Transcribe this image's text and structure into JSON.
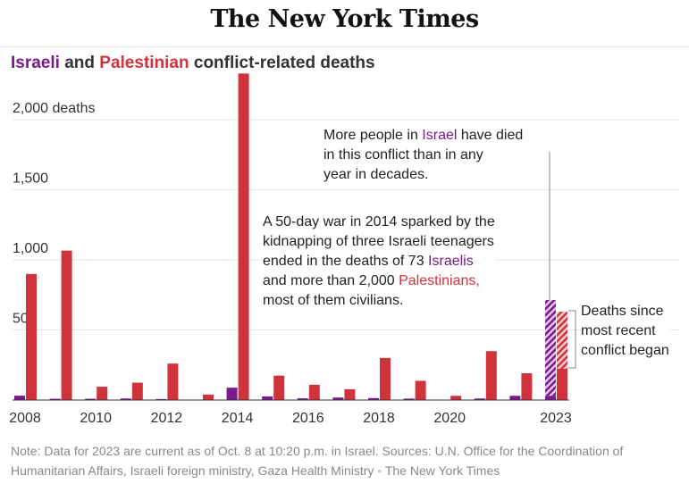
{
  "header": {
    "logo": "The New York Times"
  },
  "title": {
    "part1": "Israeli",
    "part2": " and ",
    "part3": "Palestinian",
    "part4": " conflict-related deaths"
  },
  "chart_data": {
    "type": "bar",
    "categories": [
      "2008",
      "2009",
      "2010",
      "2011",
      "2012",
      "2013",
      "2014",
      "2015",
      "2016",
      "2017",
      "2018",
      "2019",
      "2020",
      "2021",
      "2022",
      "2023"
    ],
    "tick_labels": [
      "2008",
      "2010",
      "2012",
      "2014",
      "2016",
      "2018",
      "2020",
      "2023"
    ],
    "y_ticks": [
      {
        "value": 500,
        "label": "500"
      },
      {
        "value": 1000,
        "label": "1,000"
      },
      {
        "value": 1500,
        "label": "1,500"
      },
      {
        "value": 2000,
        "label": "2,000 deaths"
      }
    ],
    "ylim": [
      0,
      2350
    ],
    "grid": true,
    "series": [
      {
        "name": "Israeli",
        "color": "#7a1a8c",
        "values": [
          31,
          9,
          9,
          11,
          7,
          3,
          88,
          26,
          12,
          18,
          14,
          10,
          3,
          11,
          30,
          713
        ],
        "hatched_from_2023": 30
      },
      {
        "name": "Palestinian",
        "color": "#d1333c",
        "values": [
          899,
          1066,
          95,
          124,
          260,
          39,
          2329,
          174,
          109,
          77,
          300,
          137,
          30,
          349,
          191,
          630
        ],
        "hatched_from_2023": 223
      }
    ]
  },
  "annotations": {
    "israel_note": {
      "l1": "More people in ",
      "israel": "Israel",
      "l1b": " have died",
      "l2": "in this conflict than in any",
      "l3": "year in decades."
    },
    "war_note": {
      "l1": "A 50-day war in 2014 sparked by the",
      "l2": "kidnapping of three Israeli teenagers",
      "l3": "ended in the deaths of 73 ",
      "israelis": "Israelis",
      "l4": "and more than 2,000 ",
      "palestinians": "Palestinians,",
      "l5": "most of them civilians."
    },
    "recent_note": {
      "l1": "Deaths since",
      "l2": "most recent",
      "l3": "conflict began"
    }
  },
  "footer": {
    "note": "Note: Data for 2023 are current as of Oct. 8 at 10:20 p.m. in Israel. Sources: U.N. Office for the Coordination of Humanitarian Affairs, Israeli foreign ministry, Gaza Health Ministry",
    "credit": "The New York Times"
  }
}
